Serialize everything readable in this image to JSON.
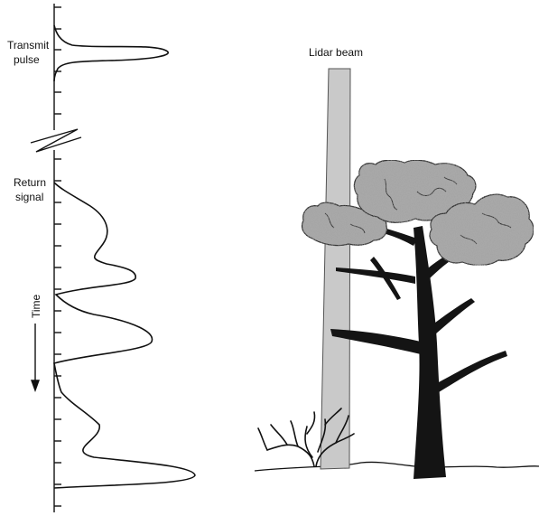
{
  "labels": {
    "transmit_pulse_line1": "Transmit",
    "transmit_pulse_line2": "pulse",
    "return_signal_line1": "Return",
    "return_signal_line2": "signal",
    "time_axis": "Time",
    "lidar_beam": "Lidar beam"
  },
  "colors": {
    "ink": "#111111",
    "beam_fill": "#c9c9c9",
    "beam_stroke": "#555555",
    "canopy_fill": "#aaaaaa",
    "trunk_fill": "#141414",
    "background": "#ffffff"
  },
  "icons": {
    "time_arrow": "arrow-down-icon",
    "axis_break": "zigzag-break-icon"
  }
}
